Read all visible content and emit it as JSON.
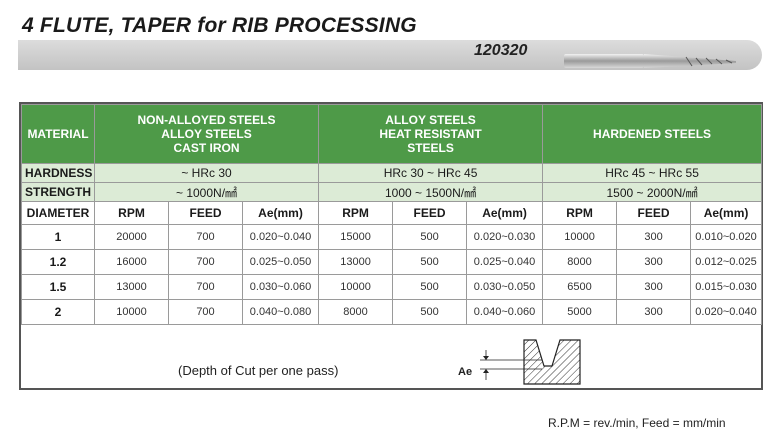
{
  "title": "4 FLUTE, TAPER  for RIB PROCESSING",
  "code": "120320",
  "table": {
    "material_label": "MATERIAL",
    "materials": [
      [
        "NON-ALLOYED STEELS",
        "ALLOY STEELS",
        "CAST IRON"
      ],
      [
        "ALLOY STEELS",
        "HEAT RESISTANT",
        "STEELS"
      ],
      [
        "HARDENED STEELS"
      ]
    ],
    "hardness_label": "HARDNESS",
    "hardness": [
      "~ HRc 30",
      "HRc 30 ~ HRc 45",
      "HRc 45 ~ HRc 55"
    ],
    "strength_label": "STRENGTH",
    "strength": [
      "~ 1000N/㎟",
      "1000 ~ 1500N/㎟",
      "1500 ~ 2000N/㎟"
    ],
    "diameter_label": "DIAMETER",
    "col_rpm": "RPM",
    "col_feed": "FEED",
    "col_ae": "Ae(mm)",
    "rows": [
      {
        "d": "1",
        "g1": [
          "20000",
          "700",
          "0.020~0.040"
        ],
        "g2": [
          "15000",
          "500",
          "0.020~0.030"
        ],
        "g3": [
          "10000",
          "300",
          "0.010~0.020"
        ]
      },
      {
        "d": "1.2",
        "g1": [
          "16000",
          "700",
          "0.025~0.050"
        ],
        "g2": [
          "13000",
          "500",
          "0.025~0.040"
        ],
        "g3": [
          "8000",
          "300",
          "0.012~0.025"
        ]
      },
      {
        "d": "1.5",
        "g1": [
          "13000",
          "700",
          "0.030~0.060"
        ],
        "g2": [
          "10000",
          "500",
          "0.030~0.050"
        ],
        "g3": [
          "6500",
          "300",
          "0.015~0.030"
        ]
      },
      {
        "d": "2",
        "g1": [
          "10000",
          "700",
          "0.040~0.080"
        ],
        "g2": [
          "8000",
          "500",
          "0.040~0.060"
        ],
        "g3": [
          "5000",
          "300",
          "0.020~0.040"
        ]
      }
    ]
  },
  "depth_note": "(Depth of Cut per one pass)",
  "ae_label": "Ae",
  "units_note": "R.P.M = rev./min,  Feed = mm/min",
  "colors": {
    "header_green": "#4e9a48",
    "light_green": "#dcebd6",
    "band_gray": "#c8c8c8"
  }
}
